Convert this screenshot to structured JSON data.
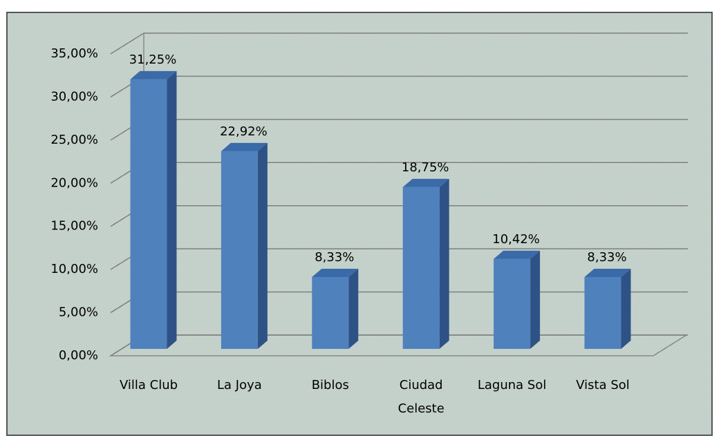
{
  "chart_data": {
    "type": "bar3d",
    "categories": [
      "Villa Club",
      "La Joya",
      "Biblos",
      "Ciudad Celeste",
      "Laguna Sol",
      "Vista Sol"
    ],
    "values": [
      31.25,
      22.92,
      8.33,
      18.75,
      10.42,
      8.33
    ],
    "value_labels": [
      "31,25%",
      "22,92%",
      "8,33%",
      "18,75%",
      "10,42%",
      "8,33%"
    ],
    "color": "#4f81bd",
    "ylim": [
      0,
      35
    ],
    "yticks": [
      {
        "value": 0,
        "label": "0,00%"
      },
      {
        "value": 5,
        "label": "5,00%"
      },
      {
        "value": 10,
        "label": "10,00%"
      },
      {
        "value": 15,
        "label": "15,00%"
      },
      {
        "value": 20,
        "label": "20,00%"
      },
      {
        "value": 25,
        "label": "25,00%"
      },
      {
        "value": 30,
        "label": "30,00%"
      },
      {
        "value": 35,
        "label": "35,00%"
      }
    ],
    "grid": true
  }
}
